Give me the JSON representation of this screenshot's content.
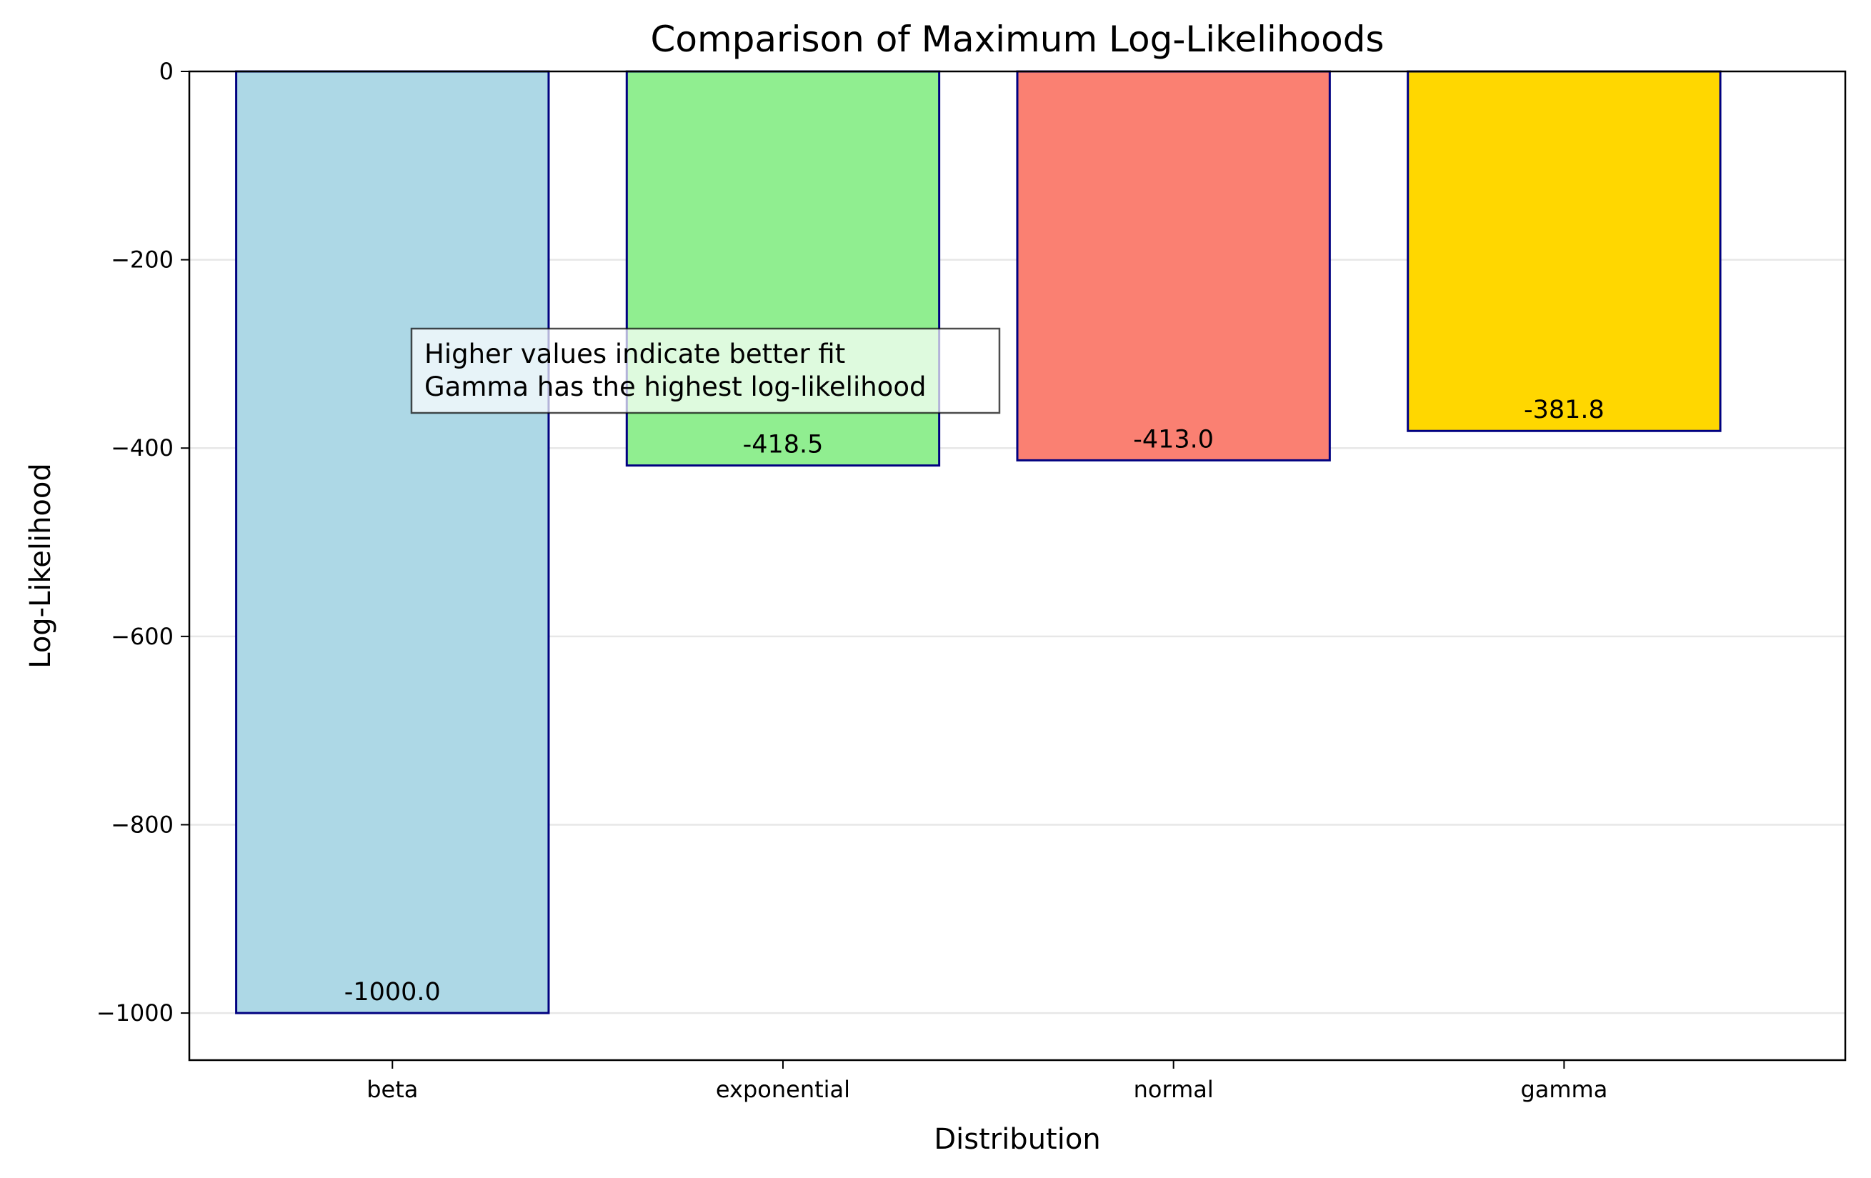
{
  "chart_data": {
    "type": "bar",
    "title": "Comparison of Maximum Log-Likelihoods",
    "xlabel": "Distribution",
    "ylabel": "Log-Likelihood",
    "categories": [
      "beta",
      "exponential",
      "normal",
      "gamma"
    ],
    "values": [
      -1000.0,
      -418.5,
      -413.0,
      -381.8
    ],
    "value_labels": [
      "-1000.0",
      "-418.5",
      "-413.0",
      "-381.8"
    ],
    "colors": [
      "#add8e6",
      "#90ee90",
      "#fa8072",
      "#ffd700"
    ],
    "edge_color": "#000080",
    "ylim": [
      -1050,
      0
    ],
    "yticks": [
      0,
      -200,
      -400,
      -600,
      -800,
      -1000
    ],
    "ytick_labels": [
      "0",
      "−200",
      "−400",
      "−600",
      "−800",
      "−1000"
    ],
    "grid": "y",
    "annotation": {
      "lines": [
        "Higher values indicate better fit",
        "Gamma has the highest log-likelihood"
      ]
    }
  }
}
